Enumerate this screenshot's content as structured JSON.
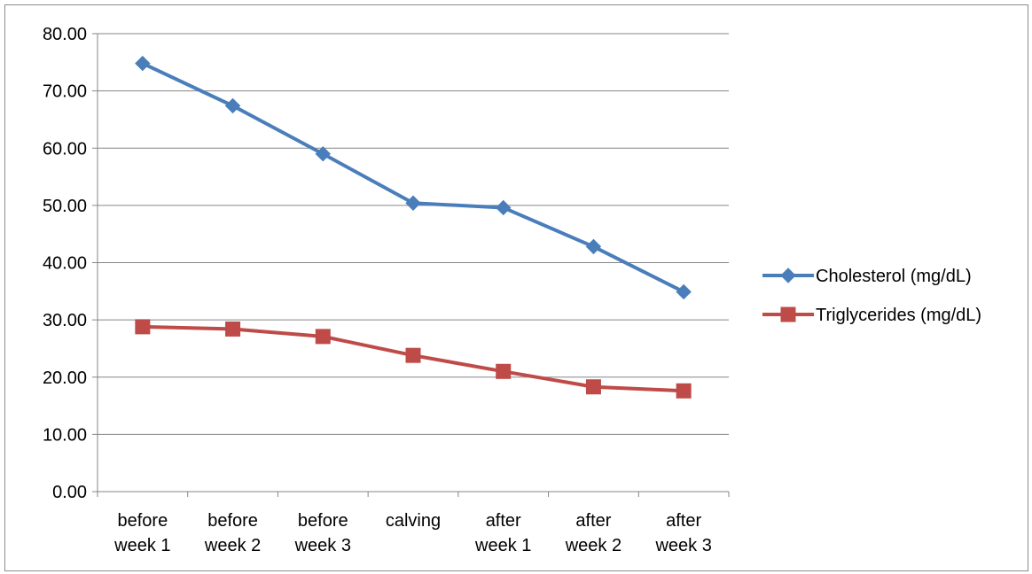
{
  "chart_data": {
    "type": "line",
    "title": "",
    "xlabel": "",
    "ylabel": "",
    "categories": [
      [
        "before",
        "week 1"
      ],
      [
        "before",
        "week 2"
      ],
      [
        "before",
        "week 3"
      ],
      [
        "calving"
      ],
      [
        "after",
        "week 1"
      ],
      [
        "after",
        "week 2"
      ],
      [
        "after",
        "week 3"
      ]
    ],
    "y_ticks": [
      "0.00",
      "10.00",
      "20.00",
      "30.00",
      "40.00",
      "50.00",
      "60.00",
      "70.00",
      "80.00"
    ],
    "ylim": [
      0,
      80
    ],
    "grid": "horizontal",
    "legend_position": "right",
    "series": [
      {
        "name": "Cholesterol (mg/dL)",
        "color": "#4a7ebb",
        "marker": "diamond",
        "values": [
          74.8,
          67.4,
          59.0,
          50.4,
          49.6,
          42.8,
          34.9
        ]
      },
      {
        "name": "Triglycerides (mg/dL)",
        "color": "#be4b48",
        "marker": "square",
        "values": [
          28.8,
          28.4,
          27.1,
          23.8,
          21.0,
          18.3,
          17.6
        ]
      }
    ]
  }
}
